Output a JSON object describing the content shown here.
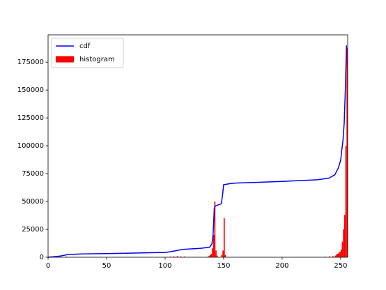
{
  "chart_data": {
    "type": "combo",
    "xlim": [
      0,
      256
    ],
    "xticks": [
      0,
      50,
      100,
      150,
      200,
      250
    ],
    "ylim": [
      0,
      199500
    ],
    "yticks": [
      0,
      25000,
      50000,
      75000,
      100000,
      125000,
      150000,
      175000
    ],
    "legend": "upper left",
    "series": [
      {
        "name": "cdf",
        "color": "#0000ff",
        "type": "line",
        "x": [
          0,
          5,
          10,
          15,
          17,
          30,
          50,
          100,
          105,
          110,
          115,
          130,
          138,
          140,
          141,
          142,
          143,
          148,
          149,
          150,
          155,
          160,
          200,
          230,
          240,
          245,
          248,
          250,
          252,
          253,
          254,
          255
        ],
        "values": [
          0,
          500,
          1000,
          2000,
          2500,
          3000,
          3300,
          4300,
          5000,
          6000,
          7000,
          8000,
          9000,
          12000,
          20000,
          44000,
          46000,
          48000,
          55000,
          65000,
          66000,
          66500,
          68000,
          69500,
          71000,
          74000,
          80000,
          87000,
          105000,
          120000,
          150000,
          190000
        ]
      },
      {
        "name": "histogram",
        "color": "#ff0000",
        "type": "bar",
        "x": [
          0,
          5,
          10,
          15,
          104,
          107,
          110,
          113,
          116,
          136,
          137,
          138,
          139,
          140,
          141,
          142,
          143,
          144,
          148,
          149,
          150,
          151,
          236,
          240,
          243,
          245,
          246,
          247,
          248,
          249,
          250,
          251,
          252,
          253,
          254,
          255
        ],
        "values": [
          300,
          300,
          400,
          600,
          500,
          800,
          1000,
          700,
          600,
          500,
          1000,
          2000,
          3000,
          8000,
          20000,
          50000,
          6000,
          1500,
          2000,
          6000,
          35000,
          2000,
          500,
          800,
          1000,
          1500,
          2500,
          3000,
          4000,
          5000,
          7000,
          14000,
          25000,
          38000,
          100000,
          188000
        ]
      }
    ]
  }
}
